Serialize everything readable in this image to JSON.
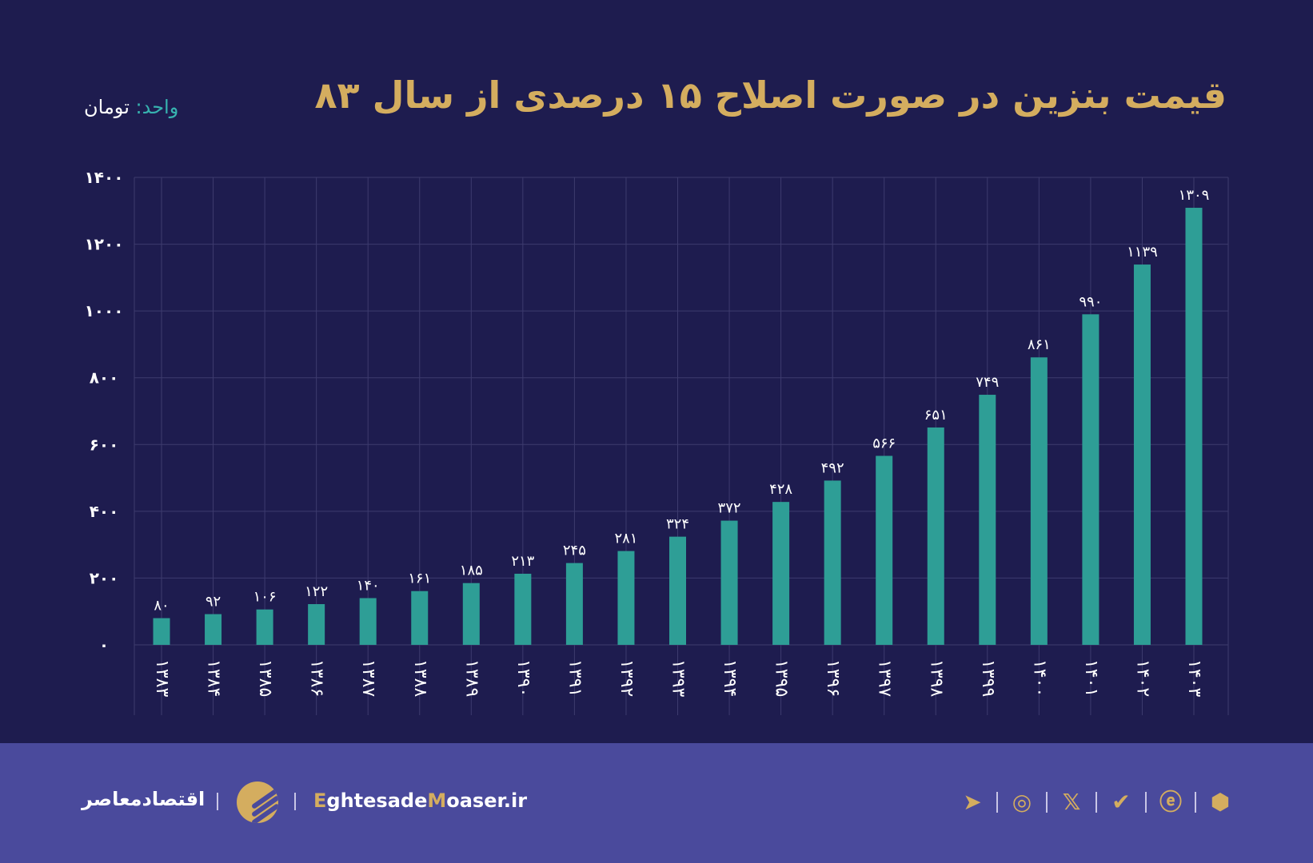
{
  "chart_data": {
    "type": "bar",
    "title": "قیمت بنزین در صورت اصلاح ۱۵ درصدی از سال ۸۳",
    "unit_label": "واحد:",
    "unit_value": "تومان",
    "categories": [
      "۱۳۸۳",
      "۱۳۸۴",
      "۱۳۸۵",
      "۱۳۸۶",
      "۱۳۸۷",
      "۱۳۸۸",
      "۱۳۸۹",
      "۱۳۹۰",
      "۱۳۹۱",
      "۱۳۹۲",
      "۱۳۹۳",
      "۱۳۹۴",
      "۱۳۹۵",
      "۱۳۹۶",
      "۱۳۹۷",
      "۱۳۹۸",
      "۱۳۹۹",
      "۱۴۰۰",
      "۱۴۰۱",
      "۱۴۰۲",
      "۱۴۰۳"
    ],
    "values": [
      80,
      92,
      106,
      122,
      140,
      161,
      185,
      213,
      245,
      281,
      324,
      372,
      428,
      492,
      566,
      651,
      749,
      861,
      990,
      1139,
      1309
    ],
    "value_labels": [
      "۸۰",
      "۹۲",
      "۱۰۶",
      "۱۲۲",
      "۱۴۰",
      "۱۶۱",
      "۱۸۵",
      "۲۱۳",
      "۲۴۵",
      "۲۸۱",
      "۳۲۴",
      "۳۷۲",
      "۴۲۸",
      "۴۹۲",
      "۵۶۶",
      "۶۵۱",
      "۷۴۹",
      "۸۶۱",
      "۹۹۰",
      "۱۱۳۹",
      "۱۳۰۹"
    ],
    "yticks": [
      0,
      200,
      400,
      600,
      800,
      1000,
      1200,
      1400
    ],
    "ytick_labels": [
      "۰",
      "۲۰۰",
      "۴۰۰",
      "۶۰۰",
      "۸۰۰",
      "۱۰۰۰",
      "۱۲۰۰",
      "۱۴۰۰"
    ],
    "ylim": [
      0,
      1400
    ],
    "grid": true,
    "bar_color": "#2e9e96",
    "title_color": "#d4ad5f"
  },
  "footer": {
    "brand_fa": "اقتصادمعاصر",
    "site_e": "E",
    "site_1": "ghtesade",
    "site_m": "M",
    "site_2": "oaser.ir",
    "icons": [
      "telegram-icon",
      "instagram-icon",
      "x-icon",
      "eitaa-icon",
      "rubika-icon",
      "bale-icon"
    ]
  }
}
